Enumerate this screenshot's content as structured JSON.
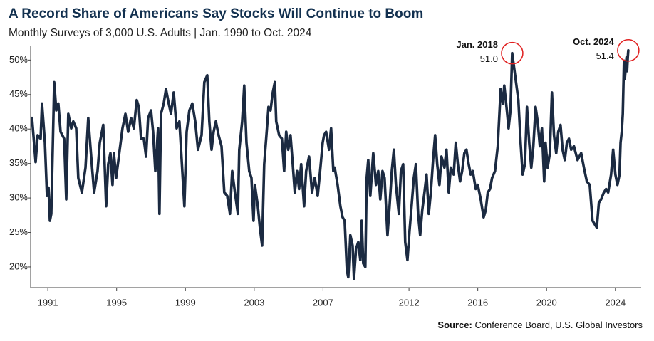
{
  "chart_data": {
    "type": "line",
    "title": "A Record Share of Americans Say Stocks Will Continue to Boom",
    "subtitle": "Monthly Surveys of 3,000 U.S. Adults | Jan. 1990 to Oct. 2024",
    "color": "#1b2a41",
    "x": [
      1990.08,
      1990.29,
      1990.41,
      1990.58,
      1990.66,
      1990.83,
      1990.95,
      1991.04,
      1991.12,
      1991.2,
      1991.37,
      1991.49,
      1991.61,
      1991.74,
      1991.95,
      1992.07,
      1992.19,
      1992.36,
      1992.48,
      1992.65,
      1992.77,
      1992.98,
      1993.19,
      1993.35,
      1993.52,
      1993.69,
      1993.89,
      1994.02,
      1994.22,
      1994.39,
      1994.51,
      1994.64,
      1994.76,
      1994.84,
      1994.97,
      1995.18,
      1995.34,
      1995.51,
      1995.67,
      1995.84,
      1996.0,
      1996.17,
      1996.29,
      1996.42,
      1996.58,
      1996.71,
      1996.83,
      1997.0,
      1997.12,
      1997.25,
      1997.41,
      1997.49,
      1997.58,
      1997.74,
      1997.87,
      1998.03,
      1998.16,
      1998.32,
      1998.49,
      1998.65,
      1998.82,
      1998.94,
      1999.07,
      1999.23,
      1999.4,
      1999.57,
      1999.73,
      1999.94,
      2000.1,
      2000.27,
      2000.39,
      2000.52,
      2000.64,
      2000.77,
      2000.93,
      2001.1,
      2001.26,
      2001.43,
      2001.59,
      2001.72,
      2001.88,
      2002.05,
      2002.13,
      2002.3,
      2002.42,
      2002.55,
      2002.71,
      2002.84,
      2002.96,
      2003.04,
      2003.21,
      2003.33,
      2003.46,
      2003.58,
      2003.71,
      2003.83,
      2003.95,
      2004.08,
      2004.2,
      2004.28,
      2004.45,
      2004.61,
      2004.74,
      2004.86,
      2004.98,
      2005.11,
      2005.24,
      2005.36,
      2005.49,
      2005.61,
      2005.73,
      2005.9,
      2006.02,
      2006.19,
      2006.36,
      2006.52,
      2006.69,
      2006.85,
      2006.98,
      2007.06,
      2007.18,
      2007.35,
      2007.47,
      2007.6,
      2007.68,
      2007.85,
      2008.01,
      2008.14,
      2008.26,
      2008.39,
      2008.47,
      2008.59,
      2008.72,
      2008.8,
      2008.92,
      2009.05,
      2009.17,
      2009.25,
      2009.34,
      2009.46,
      2009.54,
      2009.63,
      2009.75,
      2009.92,
      2010.08,
      2010.21,
      2010.33,
      2010.46,
      2010.58,
      2010.75,
      2010.87,
      2011.0,
      2011.12,
      2011.24,
      2011.41,
      2011.53,
      2011.66,
      2011.78,
      2011.91,
      2012.03,
      2012.15,
      2012.28,
      2012.4,
      2012.53,
      2012.65,
      2012.77,
      2012.9,
      2013.02,
      2013.15,
      2013.27,
      2013.4,
      2013.52,
      2013.64,
      2013.77,
      2013.89,
      2014.06,
      2014.18,
      2014.31,
      2014.43,
      2014.6,
      2014.72,
      2014.84,
      2014.97,
      2015.09,
      2015.22,
      2015.34,
      2015.47,
      2015.59,
      2015.71,
      2015.88,
      2016.0,
      2016.17,
      2016.34,
      2016.46,
      2016.58,
      2016.71,
      2016.83,
      2017.0,
      2017.16,
      2017.33,
      2017.46,
      2017.54,
      2017.71,
      2017.79,
      2017.9,
      2018.0,
      2018.36,
      2018.49,
      2018.61,
      2018.74,
      2018.86,
      2018.99,
      2019.11,
      2019.23,
      2019.36,
      2019.48,
      2019.61,
      2019.73,
      2019.86,
      2019.94,
      2020.06,
      2020.19,
      2020.31,
      2020.43,
      2020.56,
      2020.68,
      2020.81,
      2020.93,
      2021.06,
      2021.18,
      2021.3,
      2021.43,
      2021.59,
      2021.8,
      2022.01,
      2022.17,
      2022.34,
      2022.51,
      2022.67,
      2022.8,
      2022.92,
      2023.04,
      2023.17,
      2023.33,
      2023.46,
      2023.58,
      2023.75,
      2023.87,
      2024.0,
      2024.12,
      2024.24,
      2024.3,
      2024.37,
      2024.43,
      2024.5,
      2024.55,
      2024.6,
      2024.65,
      2024.68,
      2024.72,
      2024.75
    ],
    "values": [
      41.6,
      35.2,
      39.1,
      38.6,
      43.7,
      38.0,
      30.3,
      31.5,
      26.7,
      27.7,
      46.8,
      42.7,
      43.7,
      39.6,
      38.6,
      29.8,
      42.2,
      40.1,
      41.1,
      40.1,
      32.9,
      30.8,
      34.4,
      41.6,
      36.0,
      30.8,
      33.9,
      38.0,
      40.6,
      28.8,
      34.9,
      36.5,
      31.9,
      36.5,
      32.9,
      37.0,
      40.1,
      42.2,
      39.6,
      41.6,
      40.1,
      44.2,
      43.2,
      38.6,
      38.6,
      36.0,
      41.6,
      42.7,
      39.6,
      33.9,
      40.1,
      27.7,
      42.2,
      43.7,
      45.8,
      43.7,
      42.2,
      45.3,
      40.1,
      41.1,
      33.9,
      28.8,
      39.6,
      42.7,
      43.7,
      41.1,
      37.0,
      39.1,
      46.8,
      47.8,
      41.1,
      37.0,
      39.6,
      41.1,
      39.1,
      37.5,
      30.8,
      30.3,
      27.7,
      33.9,
      30.8,
      27.7,
      37.0,
      41.1,
      46.3,
      38.0,
      33.9,
      32.9,
      26.7,
      31.9,
      28.8,
      25.7,
      23.1,
      34.9,
      39.1,
      43.2,
      42.7,
      45.3,
      46.8,
      41.1,
      39.1,
      38.6,
      33.9,
      39.6,
      37.0,
      39.1,
      34.9,
      30.8,
      33.9,
      31.3,
      34.9,
      28.8,
      33.9,
      36.0,
      30.8,
      32.9,
      30.3,
      34.4,
      38.0,
      39.1,
      39.6,
      37.0,
      40.1,
      33.9,
      34.4,
      31.9,
      28.8,
      27.2,
      26.7,
      19.5,
      18.5,
      24.6,
      23.1,
      18.3,
      22.6,
      23.6,
      21.0,
      26.7,
      20.5,
      20.0,
      32.9,
      35.5,
      30.3,
      36.5,
      31.9,
      33.9,
      29.8,
      33.9,
      32.9,
      24.6,
      28.8,
      33.9,
      37.0,
      31.9,
      27.7,
      33.9,
      34.9,
      23.6,
      21.0,
      25.2,
      28.8,
      32.9,
      34.9,
      27.7,
      24.6,
      28.2,
      30.8,
      33.4,
      27.7,
      30.8,
      35.5,
      39.1,
      34.9,
      31.9,
      36.0,
      34.4,
      37.0,
      30.8,
      34.4,
      33.4,
      38.0,
      34.9,
      32.4,
      33.9,
      36.5,
      37.0,
      34.9,
      33.4,
      33.9,
      31.3,
      31.9,
      29.8,
      27.2,
      28.2,
      30.8,
      31.3,
      32.9,
      33.9,
      37.5,
      45.8,
      43.7,
      46.3,
      42.2,
      40.1,
      42.7,
      51.0,
      44.2,
      38.0,
      33.4,
      34.9,
      43.2,
      38.0,
      34.4,
      37.5,
      43.2,
      41.1,
      37.5,
      40.1,
      32.4,
      38.0,
      34.4,
      36.5,
      45.3,
      39.1,
      36.5,
      39.6,
      40.6,
      37.0,
      35.5,
      38.0,
      38.6,
      37.0,
      37.5,
      35.5,
      36.5,
      34.4,
      32.4,
      31.9,
      26.7,
      26.2,
      25.7,
      29.3,
      29.8,
      30.8,
      31.3,
      30.8,
      33.4,
      37.0,
      33.4,
      31.9,
      33.4,
      38.0,
      39.6,
      42.2,
      49.9,
      47.3,
      48.9,
      50.4,
      48.4,
      50.4,
      51.4
    ],
    "xlim": [
      1990,
      2025.5
    ],
    "xticks": [
      1991,
      1995,
      1999,
      2003,
      2007,
      2012,
      2016,
      2020,
      2024
    ],
    "ylim": [
      17,
      52
    ],
    "yticks": [
      {
        "value": 20,
        "label": "20%"
      },
      {
        "value": 25,
        "label": "25%"
      },
      {
        "value": 30,
        "label": "30%"
      },
      {
        "value": 35,
        "label": "35%"
      },
      {
        "value": 40,
        "label": "40%"
      },
      {
        "value": 45,
        "label": "45%"
      },
      {
        "value": 50,
        "label": "50%"
      }
    ],
    "grid": false,
    "annotations": [
      {
        "text": "Jan. 2018",
        "x": 2018,
        "y": 51,
        "y_label": "51.0",
        "color": "#e02020"
      },
      {
        "text": "Oct. 2024",
        "x": 2024.75,
        "y": 51.4,
        "color": "#e02020"
      }
    ],
    "source": {
      "label": "Source:",
      "text": "Conference Board, U.S. Global Investors"
    }
  }
}
